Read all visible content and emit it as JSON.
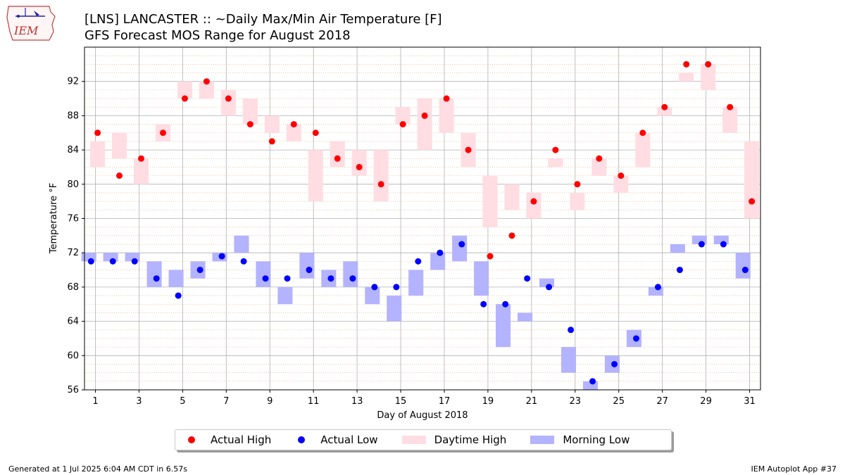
{
  "logo": {
    "text": "IEM"
  },
  "footer": {
    "generated": "Generated at 1 Jul 2025 6:04 AM CDT in 6.57s",
    "app": "IEM Autoplot App #37"
  },
  "colors": {
    "actual_high": "#ff0000",
    "actual_low": "#0000ff",
    "daytime_high": "#ffdde2",
    "morning_low": "#b3b3ff"
  },
  "chart_data": {
    "type": "bar",
    "title": "[LNS] LANCASTER :: ~Daily Max/Min Air Temperature [F]",
    "subtitle": "GFS Forecast MOS Range for August 2018",
    "xlabel": "Day of August 2018",
    "ylabel": "Temperature °F",
    "xlim": [
      0.5,
      31.5
    ],
    "ylim": [
      56,
      96
    ],
    "xticks": [
      1,
      3,
      5,
      7,
      9,
      11,
      13,
      15,
      17,
      19,
      21,
      23,
      25,
      27,
      29,
      31
    ],
    "yticks": [
      56,
      60,
      64,
      68,
      72,
      76,
      80,
      84,
      88,
      92
    ],
    "grid": true,
    "legend_position": "bottom",
    "legend": [
      "Actual High",
      "Actual Low",
      "Daytime High",
      "Morning Low"
    ],
    "days": [
      1,
      2,
      3,
      4,
      5,
      6,
      7,
      8,
      9,
      10,
      11,
      12,
      13,
      14,
      15,
      16,
      17,
      18,
      19,
      20,
      21,
      22,
      23,
      24,
      25,
      26,
      27,
      28,
      29,
      30,
      31
    ],
    "series": [
      {
        "name": "Actual High",
        "values": [
          86,
          81,
          83,
          86,
          90,
          92,
          90,
          87,
          85,
          87,
          86,
          83,
          82,
          80,
          87,
          88,
          90,
          84,
          71.6,
          74,
          78,
          84,
          80,
          83,
          81,
          86,
          89,
          94,
          94,
          89,
          78
        ]
      },
      {
        "name": "Actual Low",
        "values": [
          71,
          71,
          71,
          69,
          67,
          70,
          71.6,
          71,
          69,
          69,
          70,
          69,
          69,
          68,
          68,
          71,
          72,
          73,
          66,
          66,
          69,
          68,
          63,
          57,
          59,
          62,
          68,
          70,
          73,
          73,
          70
        ]
      },
      {
        "name": "Daytime High",
        "ranges": [
          [
            82,
            85
          ],
          [
            83,
            86
          ],
          [
            80,
            83
          ],
          [
            85,
            87
          ],
          [
            90,
            92
          ],
          [
            90,
            92
          ],
          [
            88,
            91
          ],
          [
            87,
            90
          ],
          [
            86,
            88
          ],
          [
            85,
            87
          ],
          [
            78,
            84
          ],
          [
            82,
            85
          ],
          [
            81,
            84
          ],
          [
            78,
            84
          ],
          [
            87,
            89
          ],
          [
            84,
            90
          ],
          [
            86,
            90
          ],
          [
            82,
            86
          ],
          [
            75,
            81
          ],
          [
            77,
            80
          ],
          [
            76,
            79
          ],
          [
            82,
            83
          ],
          [
            77,
            79
          ],
          [
            81,
            83
          ],
          [
            79,
            81
          ],
          [
            82,
            86
          ],
          [
            88,
            89
          ],
          [
            92,
            93
          ],
          [
            91,
            94
          ],
          [
            86,
            89
          ],
          [
            76,
            85
          ]
        ]
      },
      {
        "name": "Morning Low",
        "ranges": [
          [
            71,
            72
          ],
          [
            71,
            72
          ],
          [
            71,
            72
          ],
          [
            68,
            71
          ],
          [
            68,
            70
          ],
          [
            69,
            71
          ],
          [
            71,
            72
          ],
          [
            72,
            74
          ],
          [
            68,
            71
          ],
          [
            66,
            68
          ],
          [
            69,
            72
          ],
          [
            68,
            70
          ],
          [
            68,
            71
          ],
          [
            66,
            68
          ],
          [
            64,
            67
          ],
          [
            67,
            70
          ],
          [
            70,
            72
          ],
          [
            71,
            74
          ],
          [
            67,
            71
          ],
          [
            61,
            66
          ],
          [
            64,
            65
          ],
          [
            68,
            69
          ],
          [
            58,
            61
          ],
          [
            56,
            57
          ],
          [
            58,
            60
          ],
          [
            61,
            63
          ],
          [
            67,
            68
          ],
          [
            72,
            73
          ],
          [
            73,
            74
          ],
          [
            73,
            74
          ],
          [
            69,
            72
          ]
        ]
      }
    ]
  }
}
